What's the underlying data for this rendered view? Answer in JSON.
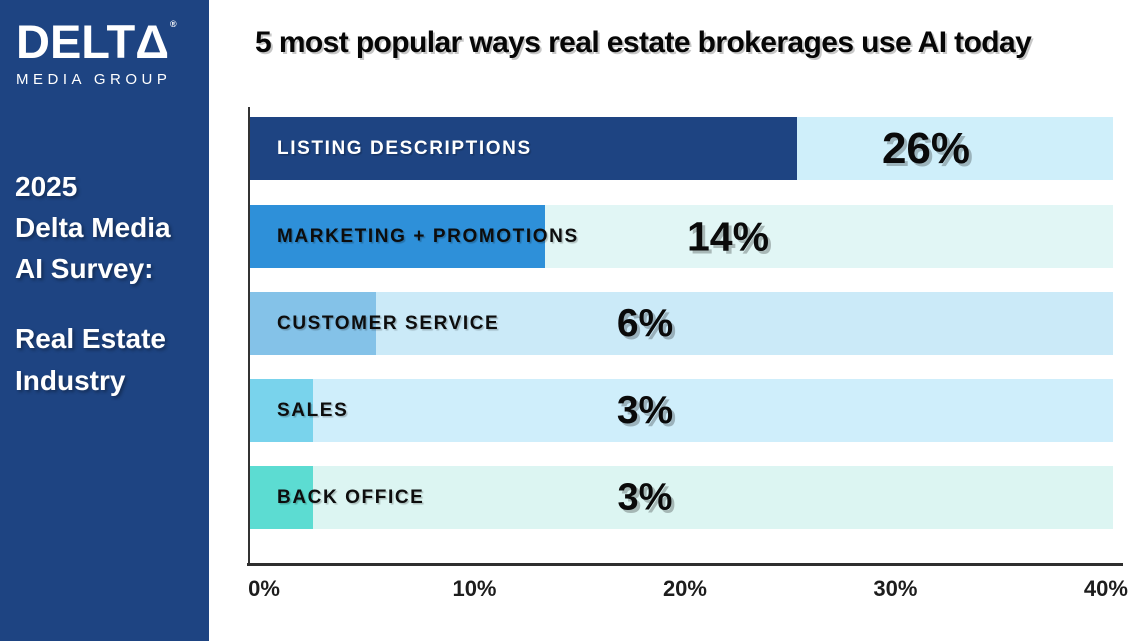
{
  "sidebar": {
    "logo": {
      "wordmark": "DELT",
      "triangle": "Δ",
      "registered": "®",
      "subtitle": "MEDIA GROUP"
    },
    "caption_lines": [
      "2025",
      "Delta Media",
      "AI Survey:",
      "",
      "Real Estate",
      "Industry"
    ]
  },
  "title": "5 most popular ways real estate brokerages use AI today",
  "chart_data": {
    "type": "bar",
    "orientation": "horizontal",
    "title": "5 most popular ways real estate brokerages use AI today",
    "categories": [
      "LISTING DESCRIPTIONS",
      "MARKETING + PROMOTIONS",
      "CUSTOMER SERVICE",
      "SALES",
      "BACK OFFICE"
    ],
    "values": [
      26,
      14,
      6,
      3,
      3
    ],
    "value_labels": [
      "26%",
      "14%",
      "6%",
      "3%",
      "3%"
    ],
    "bar_colors": [
      "#1e4482",
      "#2e90d9",
      "#84c2e8",
      "#79d3ec",
      "#5cdcd2"
    ],
    "track_colors": [
      "#cfeffa",
      "#e1f6f5",
      "#cbeaf8",
      "#cfeefb",
      "#dcf5f2"
    ],
    "category_label_colors": [
      "#ffffff",
      "#0d0d0d",
      "#0d0d0d",
      "#0d0d0d",
      "#0d0d0d"
    ],
    "xlabel": "",
    "ylabel": "",
    "x_ticks": [
      "0%",
      "10%",
      "20%",
      "30%",
      "40%"
    ],
    "x_tick_values": [
      0,
      10,
      20,
      30,
      40
    ],
    "xlim": [
      0,
      41
    ],
    "grid": false,
    "legend": false,
    "accent_color": "#1e4482"
  }
}
